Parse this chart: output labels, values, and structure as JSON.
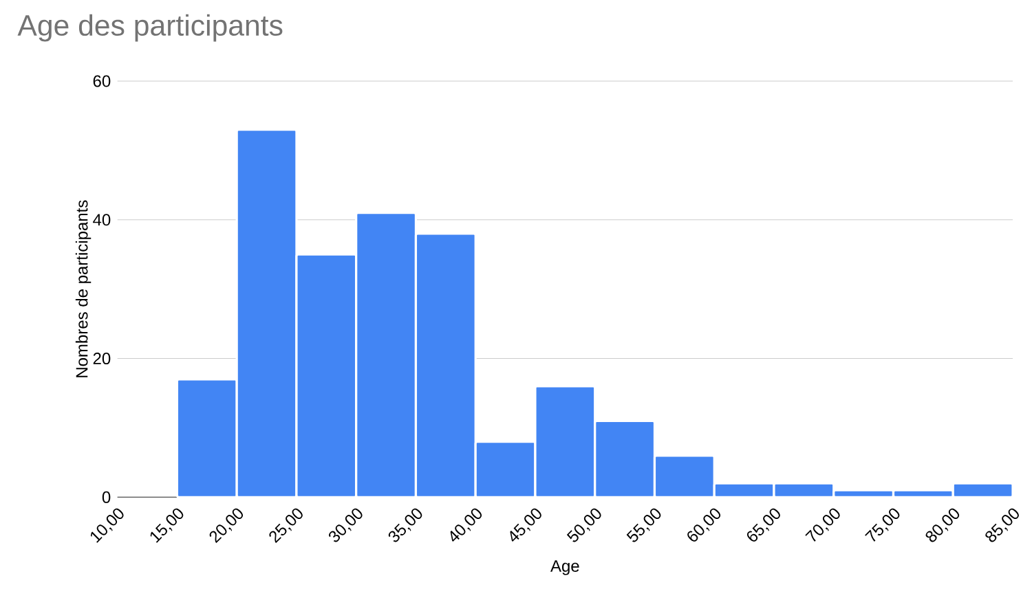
{
  "chart_data": {
    "type": "histogram",
    "title": "Age des participants",
    "xlabel": "Age",
    "ylabel": "Nombres de participants",
    "bins": [
      10,
      15,
      20,
      25,
      30,
      35,
      40,
      45,
      50,
      55,
      60,
      65,
      70,
      75,
      80,
      85
    ],
    "values": [
      0,
      17,
      53,
      35,
      41,
      38,
      8,
      16,
      11,
      6,
      2,
      2,
      1,
      1,
      2
    ],
    "color": "#4285f4",
    "xlim": [
      10,
      85
    ],
    "ylim": [
      0,
      60
    ],
    "yticks": [
      0,
      20,
      40,
      60
    ],
    "xticks": [
      {
        "value": 10,
        "label": "10,00"
      },
      {
        "value": 15,
        "label": "15,00"
      },
      {
        "value": 20,
        "label": "20,00"
      },
      {
        "value": 25,
        "label": "25,00"
      },
      {
        "value": 30,
        "label": "30,00"
      },
      {
        "value": 35,
        "label": "35,00"
      },
      {
        "value": 40,
        "label": "40,00"
      },
      {
        "value": 45,
        "label": "45,00"
      },
      {
        "value": 50,
        "label": "50,00"
      },
      {
        "value": 55,
        "label": "55,00"
      },
      {
        "value": 60,
        "label": "60,00"
      },
      {
        "value": 65,
        "label": "65,00"
      },
      {
        "value": 70,
        "label": "70,00"
      },
      {
        "value": 75,
        "label": "75,00"
      },
      {
        "value": 80,
        "label": "80,00"
      },
      {
        "value": 85,
        "label": "85,00"
      }
    ],
    "grid": "y"
  }
}
